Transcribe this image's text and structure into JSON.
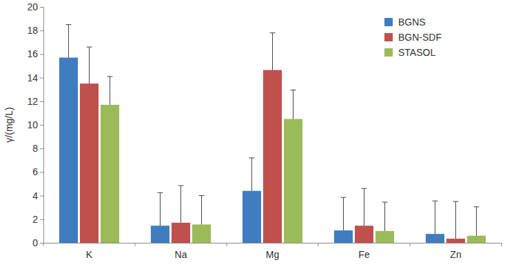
{
  "chart_data": {
    "type": "bar",
    "y_label": "γ/(mg/L)",
    "categories": [
      "K",
      "Na",
      "Mg",
      "Fe",
      "Zn"
    ],
    "series": [
      {
        "name": "BGNS",
        "color": "#3f7cc0",
        "values": [
          15.7,
          1.45,
          4.4,
          1.05,
          0.75
        ],
        "errors": [
          2.8,
          2.8,
          2.8,
          2.8,
          2.8
        ]
      },
      {
        "name": "BGN-SDF",
        "color": "#c0504d",
        "values": [
          13.5,
          1.7,
          14.65,
          1.45,
          0.35
        ],
        "errors": [
          3.1,
          3.15,
          3.15,
          3.15,
          3.15
        ]
      },
      {
        "name": "STASOL",
        "color": "#9bbb59",
        "values": [
          11.7,
          1.55,
          10.5,
          1.0,
          0.6
        ],
        "errors": [
          2.4,
          2.45,
          2.45,
          2.45,
          2.45
        ]
      }
    ],
    "ylim": [
      0,
      20
    ],
    "yticks": [
      0,
      2,
      4,
      6,
      8,
      10,
      12,
      14,
      16,
      18,
      20
    ],
    "grid": false,
    "legend": "upper right"
  }
}
